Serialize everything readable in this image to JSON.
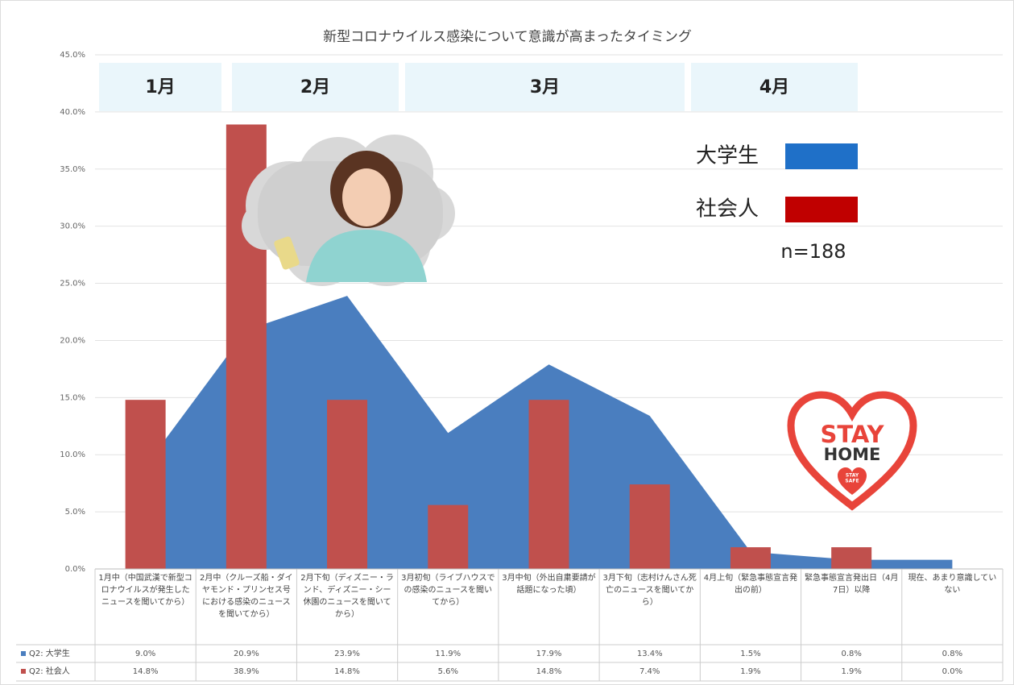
{
  "chart_data": {
    "type": "combo",
    "title": "新型コロナウイルス感染について意識が高まったタイミング",
    "categories": [
      "1月中（中国武漢で新型コロナウイルスが発生したニュースを聞いてから）",
      "2月中（クルーズ船・ダイヤモンド・プリンセス号における感染のニュースを聞いてから）",
      "2月下旬（ディズニー・ランド、ディズニー・シー休園のニュースを聞いてから）",
      "3月初旬（ライブハウスでの感染のニュースを聞いてから）",
      "3月中旬（外出自粛要請が話題になった頃）",
      "3月下旬（志村けんさん死亡のニュースを聞いてから）",
      "4月上旬（緊急事態宣言発出の前）",
      "緊急事態宣言発出日（4月7日）以降",
      "現在、あまり意識していない"
    ],
    "series": [
      {
        "name": "Q2: 大学生",
        "type": "area",
        "color": "#4a7ebf",
        "values": [
          9.0,
          20.9,
          23.9,
          11.9,
          17.9,
          13.4,
          1.5,
          0.8,
          0.8
        ],
        "value_labels": [
          "9.0%",
          "20.9%",
          "23.9%",
          "11.9%",
          "17.9%",
          "13.4%",
          "1.5%",
          "0.8%",
          "0.8%"
        ]
      },
      {
        "name": "Q2: 社会人",
        "type": "bar",
        "color": "#c0504d",
        "values": [
          14.8,
          38.9,
          14.8,
          5.6,
          14.8,
          7.4,
          1.9,
          1.9,
          0.0
        ],
        "value_labels": [
          "14.8%",
          "38.9%",
          "14.8%",
          "5.6%",
          "14.8%",
          "7.4%",
          "1.9%",
          "1.9%",
          "0.0%"
        ]
      }
    ],
    "ylim": [
      0,
      45
    ],
    "yticks": [
      {
        "value": 0,
        "label": "0.0%"
      },
      {
        "value": 5,
        "label": "5.0%"
      },
      {
        "value": 10,
        "label": "10.0%"
      },
      {
        "value": 15,
        "label": "15.0%"
      },
      {
        "value": 20,
        "label": "20.0%"
      },
      {
        "value": 25,
        "label": "25.0%"
      },
      {
        "value": 30,
        "label": "30.0%"
      },
      {
        "value": 35,
        "label": "35.0%"
      },
      {
        "value": 40,
        "label": "40.0%"
      },
      {
        "value": 45,
        "label": "45.0%"
      }
    ],
    "grid": true,
    "month_labels": [
      "1月",
      "2月",
      "3月",
      "4月"
    ],
    "legend": {
      "labels": [
        "大学生",
        "社会人"
      ],
      "colors": [
        "#1f70c8",
        "#c00000"
      ],
      "note": "n=188"
    }
  },
  "image_text": {
    "line1": "STAY",
    "line2": "HOME",
    "badge": [
      "STAY",
      "SAFE"
    ]
  }
}
